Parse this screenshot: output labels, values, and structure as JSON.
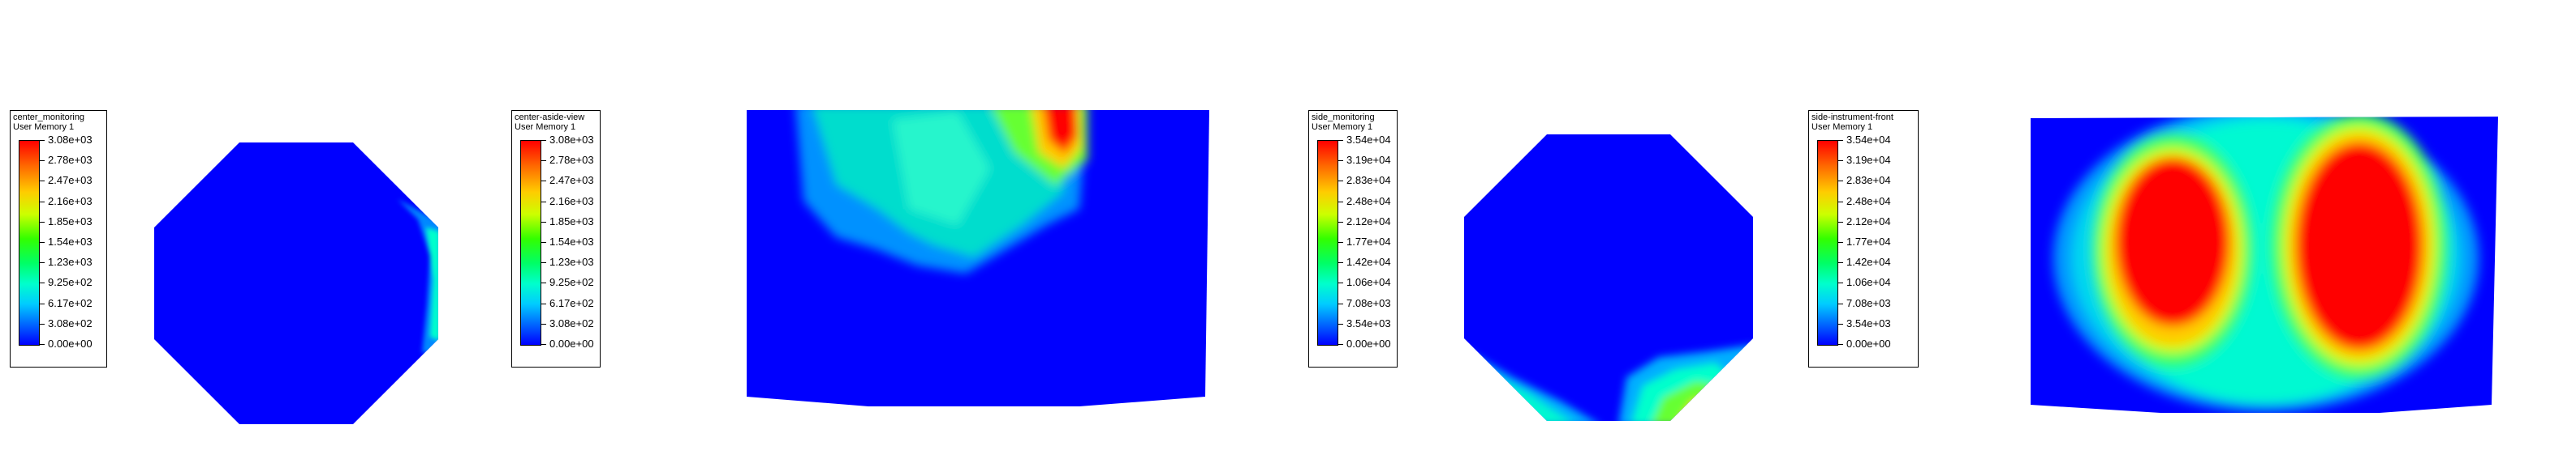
{
  "panels": [
    {
      "legend": {
        "title": "center_monitoring",
        "subtitle": "User Memory 1",
        "labels": [
          "3.08e+03",
          "2.78e+03",
          "2.47e+03",
          "2.16e+03",
          "1.85e+03",
          "1.54e+03",
          "1.23e+03",
          "9.25e+02",
          "6.17e+02",
          "3.08e+02",
          "0.00e+00"
        ]
      },
      "view": "octagon-top"
    },
    {
      "legend": {
        "title": "center-aside-view",
        "subtitle": "User Memory 1",
        "labels": [
          "3.08e+03",
          "2.78e+03",
          "2.47e+03",
          "2.16e+03",
          "1.85e+03",
          "1.54e+03",
          "1.23e+03",
          "9.25e+02",
          "6.17e+02",
          "3.08e+02",
          "0.00e+00"
        ]
      },
      "view": "side-slab"
    },
    {
      "legend": {
        "title": "side_monitoring",
        "subtitle": "User Memory 1",
        "labels": [
          "3.54e+04",
          "3.19e+04",
          "2.83e+04",
          "2.48e+04",
          "2.12e+04",
          "1.77e+04",
          "1.42e+04",
          "1.06e+04",
          "7.08e+03",
          "3.54e+03",
          "0.00e+00"
        ]
      },
      "view": "octagon-side"
    },
    {
      "legend": {
        "title": "side-instrument-front",
        "subtitle": "User Memory 1",
        "labels": [
          "3.54e+04",
          "3.19e+04",
          "2.83e+04",
          "2.48e+04",
          "2.12e+04",
          "1.77e+04",
          "1.42e+04",
          "1.06e+04",
          "7.08e+03",
          "3.54e+03",
          "0.00e+00"
        ]
      },
      "view": "front-slab"
    }
  ]
}
